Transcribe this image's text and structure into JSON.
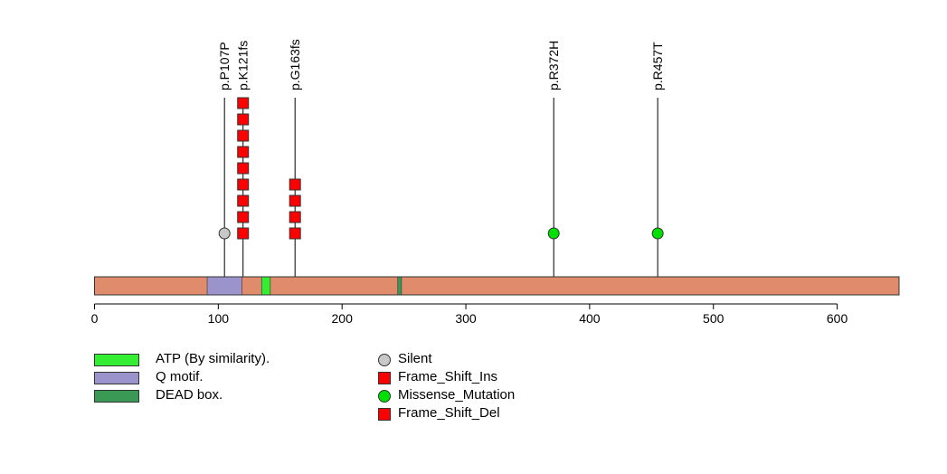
{
  "chart_data": {
    "type": "lollipop",
    "protein_length": 650,
    "backbone_color": "#E08B6C",
    "x_ticks": [
      0,
      100,
      200,
      300,
      400,
      500,
      600
    ],
    "tick_labels": [
      "0",
      "100",
      "200",
      "300",
      "400",
      "500",
      "600"
    ],
    "domains": [
      {
        "name": "Q motif.",
        "start": 91,
        "end": 119,
        "color": "#9B93CC"
      },
      {
        "name": "ATP (By similarity).",
        "start": 135,
        "end": 142,
        "color": "#33EE33"
      },
      {
        "name": "DEAD box.",
        "start": 245,
        "end": 248,
        "color": "#3A9A55"
      }
    ],
    "mutations": [
      {
        "label": "p.P107P",
        "position": 105,
        "count": 1,
        "type": "Silent",
        "shape": "circle",
        "color": "#C8C8C8"
      },
      {
        "label": "p.K121fs",
        "position": 120,
        "count": 9,
        "type": "Frame_Shift_Ins",
        "shape": "square",
        "color": "#FF0000"
      },
      {
        "label": "p.G163fs",
        "position": 162,
        "count": 4,
        "type": "Frame_Shift_Ins",
        "shape": "square",
        "color": "#FF0000"
      },
      {
        "label": "p.R372H",
        "position": 371,
        "count": 1,
        "type": "Missense_Mutation",
        "shape": "circle",
        "color": "#00E000"
      },
      {
        "label": "p.R457T",
        "position": 455,
        "count": 1,
        "type": "Missense_Mutation",
        "shape": "circle",
        "color": "#00E000"
      }
    ]
  },
  "legend": {
    "domains": [
      {
        "label": "ATP (By similarity).",
        "color": "#33EE33"
      },
      {
        "label": "Q motif.",
        "color": "#9B93CC"
      },
      {
        "label": "DEAD box.",
        "color": "#3A9A55"
      }
    ],
    "mutation_types": [
      {
        "label": "Silent",
        "shape": "circle",
        "color": "#C8C8C8"
      },
      {
        "label": "Frame_Shift_Ins",
        "shape": "square",
        "color": "#FF0000"
      },
      {
        "label": "Missense_Mutation",
        "shape": "circle",
        "color": "#00E000"
      },
      {
        "label": "Frame_Shift_Del",
        "shape": "square",
        "color": "#FF0000"
      }
    ]
  }
}
